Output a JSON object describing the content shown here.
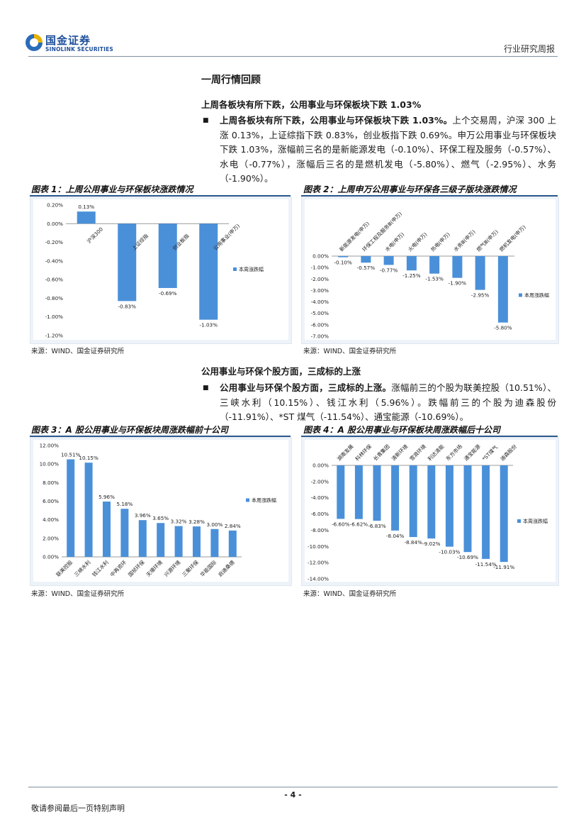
{
  "header": {
    "company_cn": "国金证券",
    "company_en": "SINOLINK SECURITIES",
    "report_type": "行业研究周报"
  },
  "section_title": "一周行情回顾",
  "subsection1": {
    "title": "上周各板块有所下跌，公用事业与环保板块下跌 1.03%",
    "bullet": "■",
    "lead": "上周各板块有所下跌，公用事业与环保板块下跌 1.03%。",
    "body": "上个交易周，沪深 300 上涨 0.13%，上证综指下跌 0.83%，创业板指下跌 0.69%。申万公用事业与环保板块下跌 1.03%，涨幅前三名的是新能源发电（-0.10%）、环保工程及服务（-0.57%）、水电（-0.77%），涨幅后三名的是燃机发电（-5.80%）、燃气（-2.95%）、水务（-1.90%）。"
  },
  "subsection2": {
    "title": "公用事业与环保个股方面，三成标的上涨",
    "bullet": "■",
    "lead": "公用事业与环保个股方面，三成标的上涨。",
    "body": "涨幅前三的个股为联美控股（10.51%）、三峡水利（10.15%）、钱江水利（5.96%）。跌幅前三的个股为迪森股份（-11.91%）、*ST 煤气（-11.54%）、通宝能源（-10.69%）。"
  },
  "figures": {
    "fig1": {
      "title": "图表 1：上周公用事业与环保板块涨跌情况",
      "source": "来源：WIND、国金证券研究所"
    },
    "fig2": {
      "title": "图表 2：上周申万公用事业与环保各三级子版块涨跌情况",
      "source": "来源：WIND、国金证券研究所"
    },
    "fig3": {
      "title": "图表 3：A 股公用事业与环保板块周涨跌幅前十公司",
      "source": "来源：WIND、国金证券研究所"
    },
    "fig4": {
      "title": "图表 4：A 股公用事业与环保板块周涨跌幅后十公司",
      "source": "来源：WIND、国金证券研究所"
    }
  },
  "chart_data": [
    {
      "type": "bar",
      "categories": [
        "沪深300",
        "上证综指",
        "创业板指",
        "公用事业(申万)"
      ],
      "series": [
        {
          "name": "本周涨跌幅",
          "values": [
            0.13,
            -0.83,
            -0.69,
            -1.03
          ]
        }
      ],
      "data_labels": [
        "0.13%",
        "-0.83%",
        "-0.69%",
        "-1.03%"
      ],
      "yticks": [
        "0.20%",
        "0.00%",
        "-0.20%",
        "-0.40%",
        "-0.60%",
        "-0.80%",
        "-1.00%",
        "-1.20%"
      ],
      "ylim": [
        -1.2,
        0.2
      ],
      "color": "#4a90d9"
    },
    {
      "type": "bar",
      "categories": [
        "新能源发电(申万)",
        "环保工程及服务Ⅲ(申万)",
        "水电(申万)",
        "火电(申万)",
        "热电(申万)",
        "水务Ⅲ(申万)",
        "燃气Ⅲ(申万)",
        "燃机发电(申万)"
      ],
      "series": [
        {
          "name": "本周涨跌幅",
          "values": [
            -0.1,
            -0.57,
            -0.77,
            -1.25,
            -1.53,
            -1.9,
            -2.95,
            -5.8
          ]
        }
      ],
      "data_labels": [
        "-0.10%",
        "-0.57%",
        "-0.77%",
        "-1.25%",
        "-1.53%",
        "-1.90%",
        "-2.95%",
        "-5.80%"
      ],
      "yticks": [
        "0.00%",
        "-1.00%",
        "-2.00%",
        "-3.00%",
        "-4.00%",
        "-5.00%",
        "-6.00%",
        "-7.00%"
      ],
      "ylim": [
        -7.0,
        0.0
      ],
      "color": "#4a90d9"
    },
    {
      "type": "bar",
      "categories": [
        "联美控股",
        "三峡水利",
        "钱江水利",
        "中再资环",
        "国祯环保",
        "天壕环境",
        "兴源环境",
        "三聚环保",
        "华能国际",
        "启迪桑德"
      ],
      "series": [
        {
          "name": "本周涨跌幅",
          "values": [
            10.51,
            10.15,
            5.96,
            5.18,
            3.96,
            3.65,
            3.32,
            3.28,
            3.0,
            2.84
          ]
        }
      ],
      "data_labels": [
        "10.51%",
        "10.15%",
        "5.96%",
        "5.18%",
        "3.96%",
        "3.65%",
        "3.32%",
        "3.28%",
        "3.00%",
        "2.84%"
      ],
      "yticks": [
        "12.00%",
        "10.00%",
        "8.00%",
        "6.00%",
        "4.00%",
        "2.00%",
        "0.00%"
      ],
      "ylim": [
        0,
        12
      ],
      "color": "#4a90d9"
    },
    {
      "type": "bar",
      "categories": [
        "湖南发展",
        "科林环保",
        "长青集团",
        "清新环境",
        "雪浪环境",
        "利达清能",
        "东方市场",
        "通宝能源",
        "*ST煤气",
        "迪森股份"
      ],
      "series": [
        {
          "name": "本周涨跌幅",
          "values": [
            -6.6,
            -6.62,
            -6.83,
            -8.04,
            -8.84,
            -9.02,
            -10.03,
            -10.69,
            -11.54,
            -11.91
          ]
        }
      ],
      "data_labels": [
        "-6.60%",
        "-6.62%",
        "-6.83%",
        "-8.04%",
        "-8.84%",
        "-9.02%",
        "-10.03%",
        "-10.69%",
        "-11.54%",
        "-11.91%"
      ],
      "yticks": [
        "0.00%",
        "-2.00%",
        "-4.00%",
        "-6.00%",
        "-8.00%",
        "-10.00%",
        "-12.00%",
        "-14.00%"
      ],
      "ylim": [
        -14,
        0
      ],
      "color": "#4a90d9"
    }
  ],
  "footer": {
    "page_number": "- 4 -",
    "disclaimer": "敬请参阅最后一页特别声明"
  }
}
